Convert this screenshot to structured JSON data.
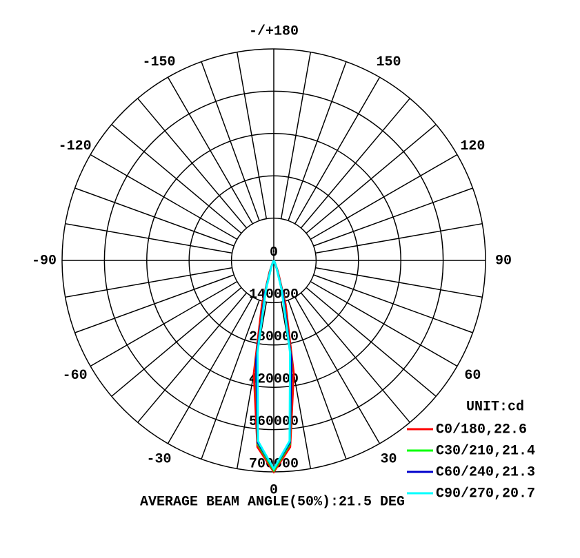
{
  "chart_data": {
    "type": "polar",
    "theta_ticks": [
      {
        "value": 180,
        "label": "-/+180"
      },
      -150,
      150,
      -120,
      120,
      -90,
      90,
      -60,
      60,
      -30,
      30,
      0
    ],
    "rlim": [
      0,
      700000
    ],
    "rticks": [
      0,
      140000,
      280000,
      420000,
      560000,
      700000
    ],
    "x": [
      -30,
      -25,
      -20,
      -15,
      -10,
      -5,
      0,
      5,
      10,
      15,
      20,
      25,
      30
    ],
    "series": [
      {
        "name": "C0/180,22.6",
        "color": "#ff0000",
        "values": [
          0,
          8000,
          40000,
          150000,
          380000,
          620000,
          700000,
          620000,
          380000,
          150000,
          40000,
          8000,
          0
        ]
      },
      {
        "name": "C30/210,21.4",
        "color": "#00ff00",
        "values": [
          0,
          6000,
          30000,
          120000,
          340000,
          610000,
          695000,
          610000,
          340000,
          120000,
          30000,
          6000,
          0
        ]
      },
      {
        "name": "C60/240,21.3",
        "color": "#0000cc",
        "values": [
          0,
          6000,
          28000,
          115000,
          335000,
          605000,
          690000,
          605000,
          335000,
          115000,
          28000,
          6000,
          0
        ]
      },
      {
        "name": "C90/270,20.7",
        "color": "#00ffff",
        "values": [
          0,
          5000,
          25000,
          100000,
          310000,
          600000,
          690000,
          600000,
          310000,
          100000,
          25000,
          5000,
          0
        ]
      }
    ],
    "legend_title": "UNIT:cd",
    "footer": "AVERAGE BEAM ANGLE(50%):21.5 DEG"
  }
}
